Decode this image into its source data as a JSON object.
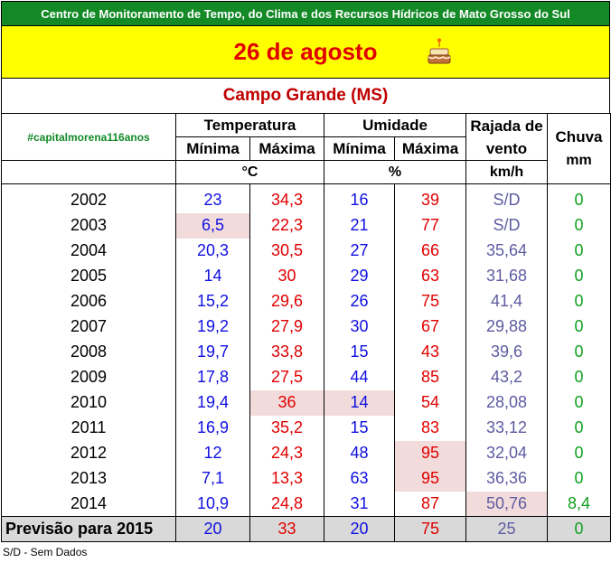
{
  "header": {
    "institution": "Centro de Monitoramento de Tempo, do Clima e dos Recursos Hídricos de Mato Grosso do Sul",
    "date": "26 de agosto",
    "city": "Campo Grande (MS)",
    "hashtag": "#capitalmorena116anos"
  },
  "columns": {
    "temperature": "Temperatura",
    "humidity": "Umidade",
    "gust": "Rajada de vento",
    "rain": "Chuva",
    "min": "Mínima",
    "max": "Máxima",
    "unit_temp": "°C",
    "unit_hum": "%",
    "unit_gust": "km/h",
    "unit_rain": "mm"
  },
  "rows": [
    {
      "year": "2002",
      "tmin": "23",
      "tmax": "34,3",
      "umin": "16",
      "umax": "39",
      "gust": "S/D",
      "rain": "0"
    },
    {
      "year": "2003",
      "tmin": "6,5",
      "tmax": "22,3",
      "umin": "21",
      "umax": "77",
      "gust": "S/D",
      "rain": "0"
    },
    {
      "year": "2004",
      "tmin": "20,3",
      "tmax": "30,5",
      "umin": "27",
      "umax": "66",
      "gust": "35,64",
      "rain": "0"
    },
    {
      "year": "2005",
      "tmin": "14",
      "tmax": "30",
      "umin": "29",
      "umax": "63",
      "gust": "31,68",
      "rain": "0"
    },
    {
      "year": "2006",
      "tmin": "15,2",
      "tmax": "29,6",
      "umin": "26",
      "umax": "75",
      "gust": "41,4",
      "rain": "0"
    },
    {
      "year": "2007",
      "tmin": "19,2",
      "tmax": "27,9",
      "umin": "30",
      "umax": "67",
      "gust": "29,88",
      "rain": "0"
    },
    {
      "year": "2008",
      "tmin": "19,7",
      "tmax": "33,8",
      "umin": "15",
      "umax": "43",
      "gust": "39,6",
      "rain": "0"
    },
    {
      "year": "2009",
      "tmin": "17,8",
      "tmax": "27,5",
      "umin": "44",
      "umax": "85",
      "gust": "43,2",
      "rain": "0"
    },
    {
      "year": "2010",
      "tmin": "19,4",
      "tmax": "36",
      "umin": "14",
      "umax": "54",
      "gust": "28,08",
      "rain": "0"
    },
    {
      "year": "2011",
      "tmin": "16,9",
      "tmax": "35,2",
      "umin": "15",
      "umax": "83",
      "gust": "33,12",
      "rain": "0"
    },
    {
      "year": "2012",
      "tmin": "12",
      "tmax": "24,3",
      "umin": "48",
      "umax": "95",
      "gust": "32,04",
      "rain": "0"
    },
    {
      "year": "2013",
      "tmin": "7,1",
      "tmax": "13,3",
      "umin": "63",
      "umax": "95",
      "gust": "36,36",
      "rain": "0"
    },
    {
      "year": "2014",
      "tmin": "10,9",
      "tmax": "24,8",
      "umin": "31",
      "umax": "87",
      "gust": "50,76",
      "rain": "8,4"
    }
  ],
  "forecast": {
    "label": "Previsão para 2015",
    "tmin": "20",
    "tmax": "33",
    "umin": "20",
    "umax": "75",
    "gust": "25",
    "rain": "0"
  },
  "footnote": "S/D - Sem Dados",
  "colors": {
    "banner": "#138a26",
    "date_band": "#ffff00",
    "highlight": "#f2dcdb"
  }
}
